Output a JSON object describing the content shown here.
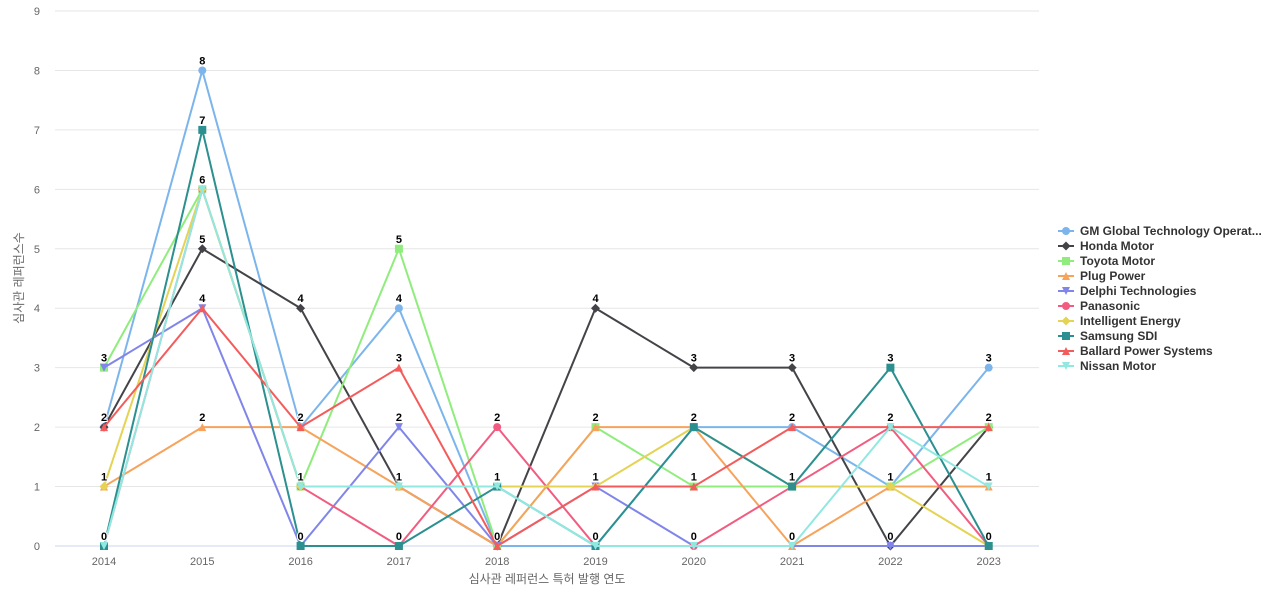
{
  "chart_data": {
    "type": "line",
    "xlabel": "심사관 레퍼런스 특허 발행 연도",
    "ylabel": "심사관 레퍼런스수",
    "categories": [
      "2014",
      "2015",
      "2016",
      "2017",
      "2018",
      "2019",
      "2020",
      "2021",
      "2022",
      "2023"
    ],
    "ylim": [
      0,
      9
    ],
    "yticks": [
      "0",
      "1",
      "2",
      "3",
      "4",
      "5",
      "6",
      "7",
      "8",
      "9"
    ],
    "grid": true,
    "legend_position": "right",
    "series": [
      {
        "name": "GM Global Technology Operat...",
        "color": "#7cb5ec",
        "marker": "circle",
        "values": [
          2,
          8,
          2,
          4,
          0,
          0,
          2,
          2,
          1,
          3
        ]
      },
      {
        "name": "Honda Motor",
        "color": "#434348",
        "marker": "diamond",
        "values": [
          2,
          5,
          4,
          1,
          0,
          4,
          3,
          3,
          0,
          2
        ]
      },
      {
        "name": "Toyota Motor",
        "color": "#90ed7d",
        "marker": "square",
        "values": [
          3,
          6,
          1,
          5,
          0,
          2,
          1,
          1,
          1,
          2
        ]
      },
      {
        "name": "Plug Power",
        "color": "#f7a35c",
        "marker": "triangle",
        "values": [
          1,
          2,
          2,
          1,
          0,
          2,
          2,
          0,
          1,
          1
        ]
      },
      {
        "name": "Delphi Technologies",
        "color": "#8085e9",
        "marker": "triangle-down",
        "values": [
          3,
          4,
          0,
          2,
          0,
          1,
          0,
          0,
          0,
          0
        ]
      },
      {
        "name": "Panasonic",
        "color": "#f15c80",
        "marker": "circle",
        "values": [
          0,
          6,
          1,
          0,
          2,
          0,
          0,
          1,
          2,
          0
        ]
      },
      {
        "name": "Intelligent Energy",
        "color": "#e4d354",
        "marker": "diamond",
        "values": [
          1,
          6,
          1,
          1,
          1,
          1,
          2,
          1,
          1,
          0
        ]
      },
      {
        "name": "Samsung SDI",
        "color": "#2b908f",
        "marker": "square",
        "values": [
          0,
          7,
          0,
          0,
          1,
          0,
          2,
          1,
          3,
          0
        ]
      },
      {
        "name": "Ballard Power Systems",
        "color": "#f45b5b",
        "marker": "triangle",
        "values": [
          2,
          4,
          2,
          3,
          0,
          1,
          1,
          2,
          2,
          2
        ]
      },
      {
        "name": "Nissan Motor",
        "color": "#91e8e1",
        "marker": "triangle-down",
        "values": [
          0,
          6,
          1,
          1,
          1,
          0,
          0,
          0,
          2,
          1
        ]
      }
    ],
    "max_labels": [
      {
        "x": "2014",
        "label": "3",
        "value": 3
      },
      {
        "x": "2015",
        "label": "8",
        "value": 8
      },
      {
        "x": "2016",
        "label": "4",
        "value": 4
      },
      {
        "x": "2017",
        "label": "5",
        "value": 5
      },
      {
        "x": "2018",
        "label": "2",
        "value": 2
      },
      {
        "x": "2019",
        "label": "4",
        "value": 4
      },
      {
        "x": "2020",
        "label": "3",
        "value": 3
      },
      {
        "x": "2021",
        "label": "3",
        "value": 3
      },
      {
        "x": "2022",
        "label": "3",
        "value": 3
      },
      {
        "x": "2023",
        "label": "3",
        "value": 3
      }
    ],
    "value_labels": [
      {
        "x": "2014",
        "label": "2",
        "value": 2
      },
      {
        "x": "2014",
        "label": "1",
        "value": 1
      },
      {
        "x": "2014",
        "label": "0",
        "value": 0
      },
      {
        "x": "2015",
        "label": "7",
        "value": 7
      },
      {
        "x": "2015",
        "label": "6",
        "value": 6
      },
      {
        "x": "2015",
        "label": "5",
        "value": 5
      },
      {
        "x": "2015",
        "label": "4",
        "value": 4
      },
      {
        "x": "2015",
        "label": "2",
        "value": 2
      },
      {
        "x": "2016",
        "label": "2",
        "value": 2
      },
      {
        "x": "2016",
        "label": "1",
        "value": 1
      },
      {
        "x": "2016",
        "label": "0",
        "value": 0
      },
      {
        "x": "2017",
        "label": "4",
        "value": 4
      },
      {
        "x": "2017",
        "label": "3",
        "value": 3
      },
      {
        "x": "2017",
        "label": "2",
        "value": 2
      },
      {
        "x": "2017",
        "label": "1",
        "value": 1
      },
      {
        "x": "2017",
        "label": "0",
        "value": 0
      },
      {
        "x": "2018",
        "label": "1",
        "value": 1
      },
      {
        "x": "2018",
        "label": "0",
        "value": 0
      },
      {
        "x": "2019",
        "label": "2",
        "value": 2
      },
      {
        "x": "2019",
        "label": "1",
        "value": 1
      },
      {
        "x": "2019",
        "label": "0",
        "value": 0
      },
      {
        "x": "2020",
        "label": "2",
        "value": 2
      },
      {
        "x": "2020",
        "label": "1",
        "value": 1
      },
      {
        "x": "2020",
        "label": "0",
        "value": 0
      },
      {
        "x": "2021",
        "label": "2",
        "value": 2
      },
      {
        "x": "2021",
        "label": "1",
        "value": 1
      },
      {
        "x": "2021",
        "label": "0",
        "value": 0
      },
      {
        "x": "2022",
        "label": "2",
        "value": 2
      },
      {
        "x": "2022",
        "label": "1",
        "value": 1
      },
      {
        "x": "2022",
        "label": "0",
        "value": 0
      },
      {
        "x": "2023",
        "label": "2",
        "value": 2
      },
      {
        "x": "2023",
        "label": "1",
        "value": 1
      },
      {
        "x": "2023",
        "label": "0",
        "value": 0
      }
    ]
  }
}
